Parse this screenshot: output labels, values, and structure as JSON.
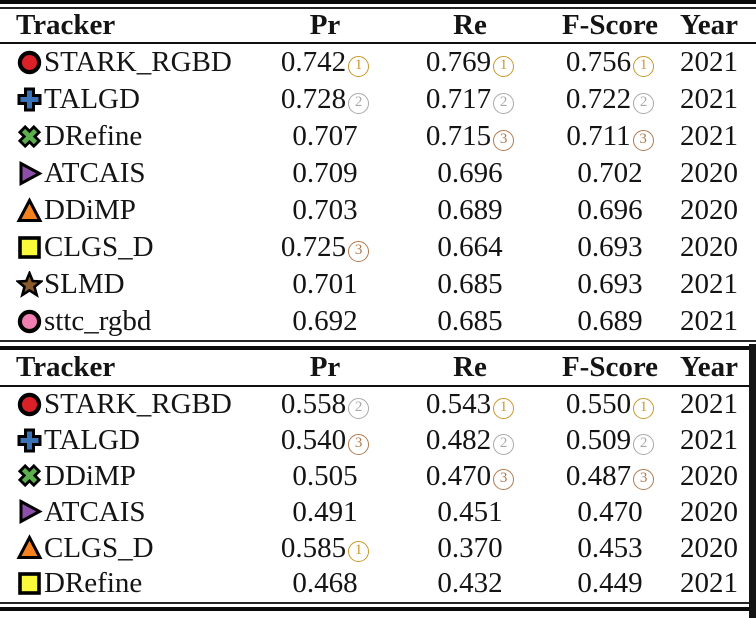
{
  "medals": {
    "gold": "#C9992B",
    "silver": "#A9A9A9",
    "bronze": "#AF7B51"
  },
  "tables": [
    {
      "columns": [
        "Tracker",
        "Pr",
        "Re",
        "F-Score",
        "Year"
      ],
      "rows": [
        {
          "icon": "circle",
          "color": "#DB2127",
          "name": "STARK_RGBD",
          "pr": "0.742",
          "prR": 1,
          "re": "0.769",
          "reR": 1,
          "fs": "0.756",
          "fsR": 1,
          "year": "2021"
        },
        {
          "icon": "plus",
          "color": "#3B71B5",
          "name": "TALGD",
          "pr": "0.728",
          "prR": 2,
          "re": "0.717",
          "reR": 2,
          "fs": "0.722",
          "fsR": 2,
          "year": "2021"
        },
        {
          "icon": "cross",
          "color": "#5BB04D",
          "name": "DRefine",
          "pr": "0.707",
          "prR": null,
          "re": "0.715",
          "reR": 3,
          "fs": "0.711",
          "fsR": 3,
          "year": "2021"
        },
        {
          "icon": "triangle-right",
          "color": "#8E4FA8",
          "name": "ATCAIS",
          "pr": "0.709",
          "prR": null,
          "re": "0.696",
          "reR": null,
          "fs": "0.702",
          "fsR": null,
          "year": "2020"
        },
        {
          "icon": "triangle-up",
          "color": "#F5821F",
          "name": "DDiMP",
          "pr": "0.703",
          "prR": null,
          "re": "0.689",
          "reR": null,
          "fs": "0.696",
          "fsR": null,
          "year": "2020"
        },
        {
          "icon": "square",
          "color": "#FAF83B",
          "name": "CLGS_D",
          "pr": "0.725",
          "prR": 3,
          "re": "0.664",
          "reR": null,
          "fs": "0.693",
          "fsR": null,
          "year": "2020"
        },
        {
          "icon": "star",
          "color": "#8B5A2B",
          "name": "SLMD",
          "pr": "0.701",
          "prR": null,
          "re": "0.685",
          "reR": null,
          "fs": "0.693",
          "fsR": null,
          "year": "2021"
        },
        {
          "icon": "circle",
          "color": "#F07EB0",
          "name": "sttc_rgbd",
          "pr": "0.692",
          "prR": null,
          "re": "0.685",
          "reR": null,
          "fs": "0.689",
          "fsR": null,
          "year": "2021"
        }
      ]
    },
    {
      "columns": [
        "Tracker",
        "Pr",
        "Re",
        "F-Score",
        "Year"
      ],
      "rows": [
        {
          "icon": "circle",
          "color": "#DB2127",
          "name": "STARK_RGBD",
          "pr": "0.558",
          "prR": 2,
          "re": "0.543",
          "reR": 1,
          "fs": "0.550",
          "fsR": 1,
          "year": "2021"
        },
        {
          "icon": "plus",
          "color": "#3B71B5",
          "name": "TALGD",
          "pr": "0.540",
          "prR": 3,
          "re": "0.482",
          "reR": 2,
          "fs": "0.509",
          "fsR": 2,
          "year": "2021"
        },
        {
          "icon": "cross",
          "color": "#5BB04D",
          "name": "DDiMP",
          "pr": "0.505",
          "prR": null,
          "re": "0.470",
          "reR": 3,
          "fs": "0.487",
          "fsR": 3,
          "year": "2020"
        },
        {
          "icon": "triangle-right",
          "color": "#8E4FA8",
          "name": "ATCAIS",
          "pr": "0.491",
          "prR": null,
          "re": "0.451",
          "reR": null,
          "fs": "0.470",
          "fsR": null,
          "year": "2020"
        },
        {
          "icon": "triangle-up",
          "color": "#F5821F",
          "name": "CLGS_D",
          "pr": "0.585",
          "prR": 1,
          "re": "0.370",
          "reR": null,
          "fs": "0.453",
          "fsR": null,
          "year": "2020"
        },
        {
          "icon": "square",
          "color": "#FAF83B",
          "name": "DRefine",
          "pr": "0.468",
          "prR": null,
          "re": "0.432",
          "reR": null,
          "fs": "0.449",
          "fsR": null,
          "year": "2021"
        }
      ]
    }
  ]
}
